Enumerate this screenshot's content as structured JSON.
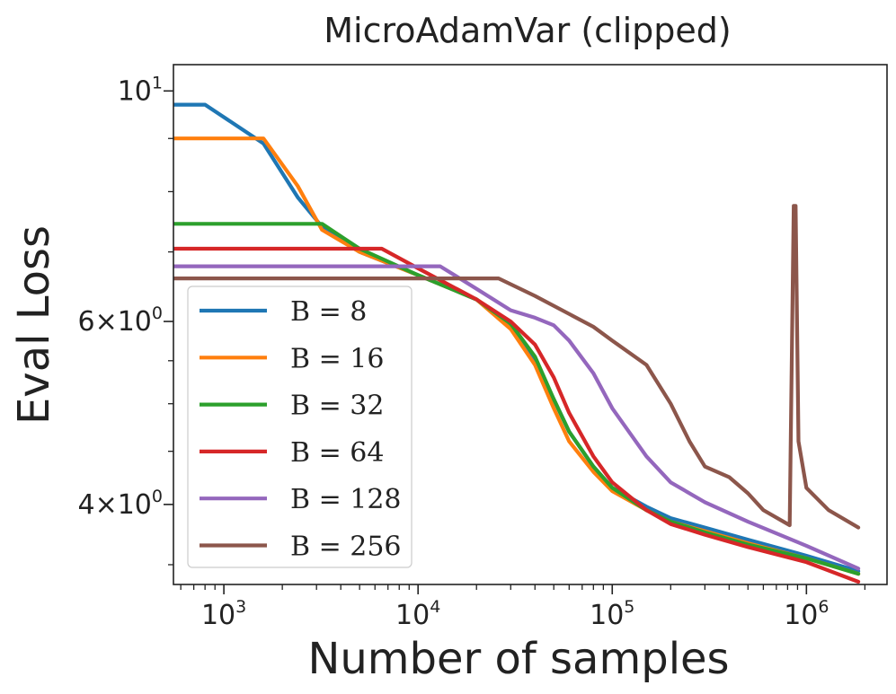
{
  "chart_data": {
    "type": "line",
    "title": "MicroAdamVar (clipped)",
    "xlabel": "Number of samples",
    "ylabel": "Eval Loss",
    "xscale": "log",
    "yscale": "log",
    "xlim": [
      550,
      2600000
    ],
    "ylim": [
      3.35,
      10.6
    ],
    "x_ticks": [
      {
        "value": 1000,
        "base": "10",
        "exp": "3"
      },
      {
        "value": 10000,
        "base": "10",
        "exp": "4"
      },
      {
        "value": 100000,
        "base": "10",
        "exp": "5"
      },
      {
        "value": 1000000,
        "base": "10",
        "exp": "6"
      }
    ],
    "y_ticks": [
      {
        "value": 10,
        "mant": "",
        "base": "10",
        "exp": "1"
      },
      {
        "value": 6,
        "mant": "6×",
        "base": "10",
        "exp": "0"
      },
      {
        "value": 4,
        "mant": "4×",
        "base": "10",
        "exp": "0"
      }
    ],
    "grid": false,
    "legend_position": "lower-left",
    "series": [
      {
        "name": "B = 8",
        "color": "#1f77b4",
        "points": [
          [
            550,
            9.7
          ],
          [
            800,
            9.7
          ],
          [
            1600,
            8.9
          ],
          [
            2400,
            7.9
          ],
          [
            3200,
            7.4
          ],
          [
            5000,
            7.0
          ],
          [
            10000,
            6.65
          ],
          [
            20000,
            6.3
          ],
          [
            30000,
            5.95
          ],
          [
            40000,
            5.5
          ],
          [
            50000,
            5.05
          ],
          [
            60000,
            4.7
          ],
          [
            80000,
            4.35
          ],
          [
            100000,
            4.15
          ],
          [
            150000,
            3.98
          ],
          [
            200000,
            3.88
          ],
          [
            300000,
            3.8
          ],
          [
            500000,
            3.7
          ],
          [
            1000000,
            3.57
          ],
          [
            1850000,
            3.45
          ]
        ]
      },
      {
        "name": "B = 16",
        "color": "#ff7f0e",
        "points": [
          [
            550,
            9.0
          ],
          [
            1600,
            9.0
          ],
          [
            2400,
            8.1
          ],
          [
            3200,
            7.35
          ],
          [
            5000,
            7.0
          ],
          [
            10000,
            6.65
          ],
          [
            20000,
            6.3
          ],
          [
            30000,
            5.9
          ],
          [
            40000,
            5.45
          ],
          [
            50000,
            4.95
          ],
          [
            60000,
            4.6
          ],
          [
            80000,
            4.3
          ],
          [
            100000,
            4.12
          ],
          [
            150000,
            3.95
          ],
          [
            200000,
            3.85
          ],
          [
            300000,
            3.77
          ],
          [
            500000,
            3.67
          ],
          [
            1000000,
            3.55
          ],
          [
            1850000,
            3.43
          ]
        ]
      },
      {
        "name": "B = 32",
        "color": "#2ca02c",
        "points": [
          [
            550,
            7.45
          ],
          [
            3200,
            7.45
          ],
          [
            5000,
            7.05
          ],
          [
            10000,
            6.65
          ],
          [
            20000,
            6.3
          ],
          [
            30000,
            5.97
          ],
          [
            40000,
            5.55
          ],
          [
            50000,
            5.05
          ],
          [
            60000,
            4.7
          ],
          [
            80000,
            4.35
          ],
          [
            100000,
            4.15
          ],
          [
            150000,
            3.95
          ],
          [
            200000,
            3.85
          ],
          [
            300000,
            3.76
          ],
          [
            500000,
            3.66
          ],
          [
            1000000,
            3.55
          ],
          [
            1850000,
            3.43
          ]
        ]
      },
      {
        "name": "B = 64",
        "color": "#d62728",
        "points": [
          [
            550,
            7.05
          ],
          [
            6500,
            7.05
          ],
          [
            10000,
            6.75
          ],
          [
            20000,
            6.3
          ],
          [
            30000,
            6.0
          ],
          [
            40000,
            5.7
          ],
          [
            50000,
            5.3
          ],
          [
            60000,
            4.9
          ],
          [
            80000,
            4.45
          ],
          [
            100000,
            4.2
          ],
          [
            150000,
            3.95
          ],
          [
            200000,
            3.83
          ],
          [
            300000,
            3.74
          ],
          [
            500000,
            3.64
          ],
          [
            1000000,
            3.52
          ],
          [
            1850000,
            3.37
          ]
        ]
      },
      {
        "name": "B = 128",
        "color": "#9467bd",
        "points": [
          [
            550,
            6.78
          ],
          [
            13000,
            6.78
          ],
          [
            20000,
            6.45
          ],
          [
            30000,
            6.15
          ],
          [
            40000,
            6.05
          ],
          [
            50000,
            5.95
          ],
          [
            60000,
            5.75
          ],
          [
            80000,
            5.35
          ],
          [
            100000,
            4.95
          ],
          [
            150000,
            4.45
          ],
          [
            200000,
            4.2
          ],
          [
            300000,
            4.02
          ],
          [
            500000,
            3.85
          ],
          [
            1000000,
            3.65
          ],
          [
            1850000,
            3.47
          ]
        ]
      },
      {
        "name": "B = 256",
        "color": "#8c564b",
        "points": [
          [
            550,
            6.6
          ],
          [
            26000,
            6.6
          ],
          [
            40000,
            6.35
          ],
          [
            60000,
            6.1
          ],
          [
            80000,
            5.93
          ],
          [
            100000,
            5.75
          ],
          [
            150000,
            5.45
          ],
          [
            200000,
            5.0
          ],
          [
            250000,
            4.6
          ],
          [
            300000,
            4.35
          ],
          [
            400000,
            4.25
          ],
          [
            500000,
            4.1
          ],
          [
            600000,
            3.95
          ],
          [
            820000,
            3.82
          ],
          [
            860000,
            7.75
          ],
          [
            880000,
            7.75
          ],
          [
            910000,
            4.6
          ],
          [
            1000000,
            4.15
          ],
          [
            1300000,
            3.95
          ],
          [
            1850000,
            3.8
          ]
        ]
      }
    ]
  }
}
